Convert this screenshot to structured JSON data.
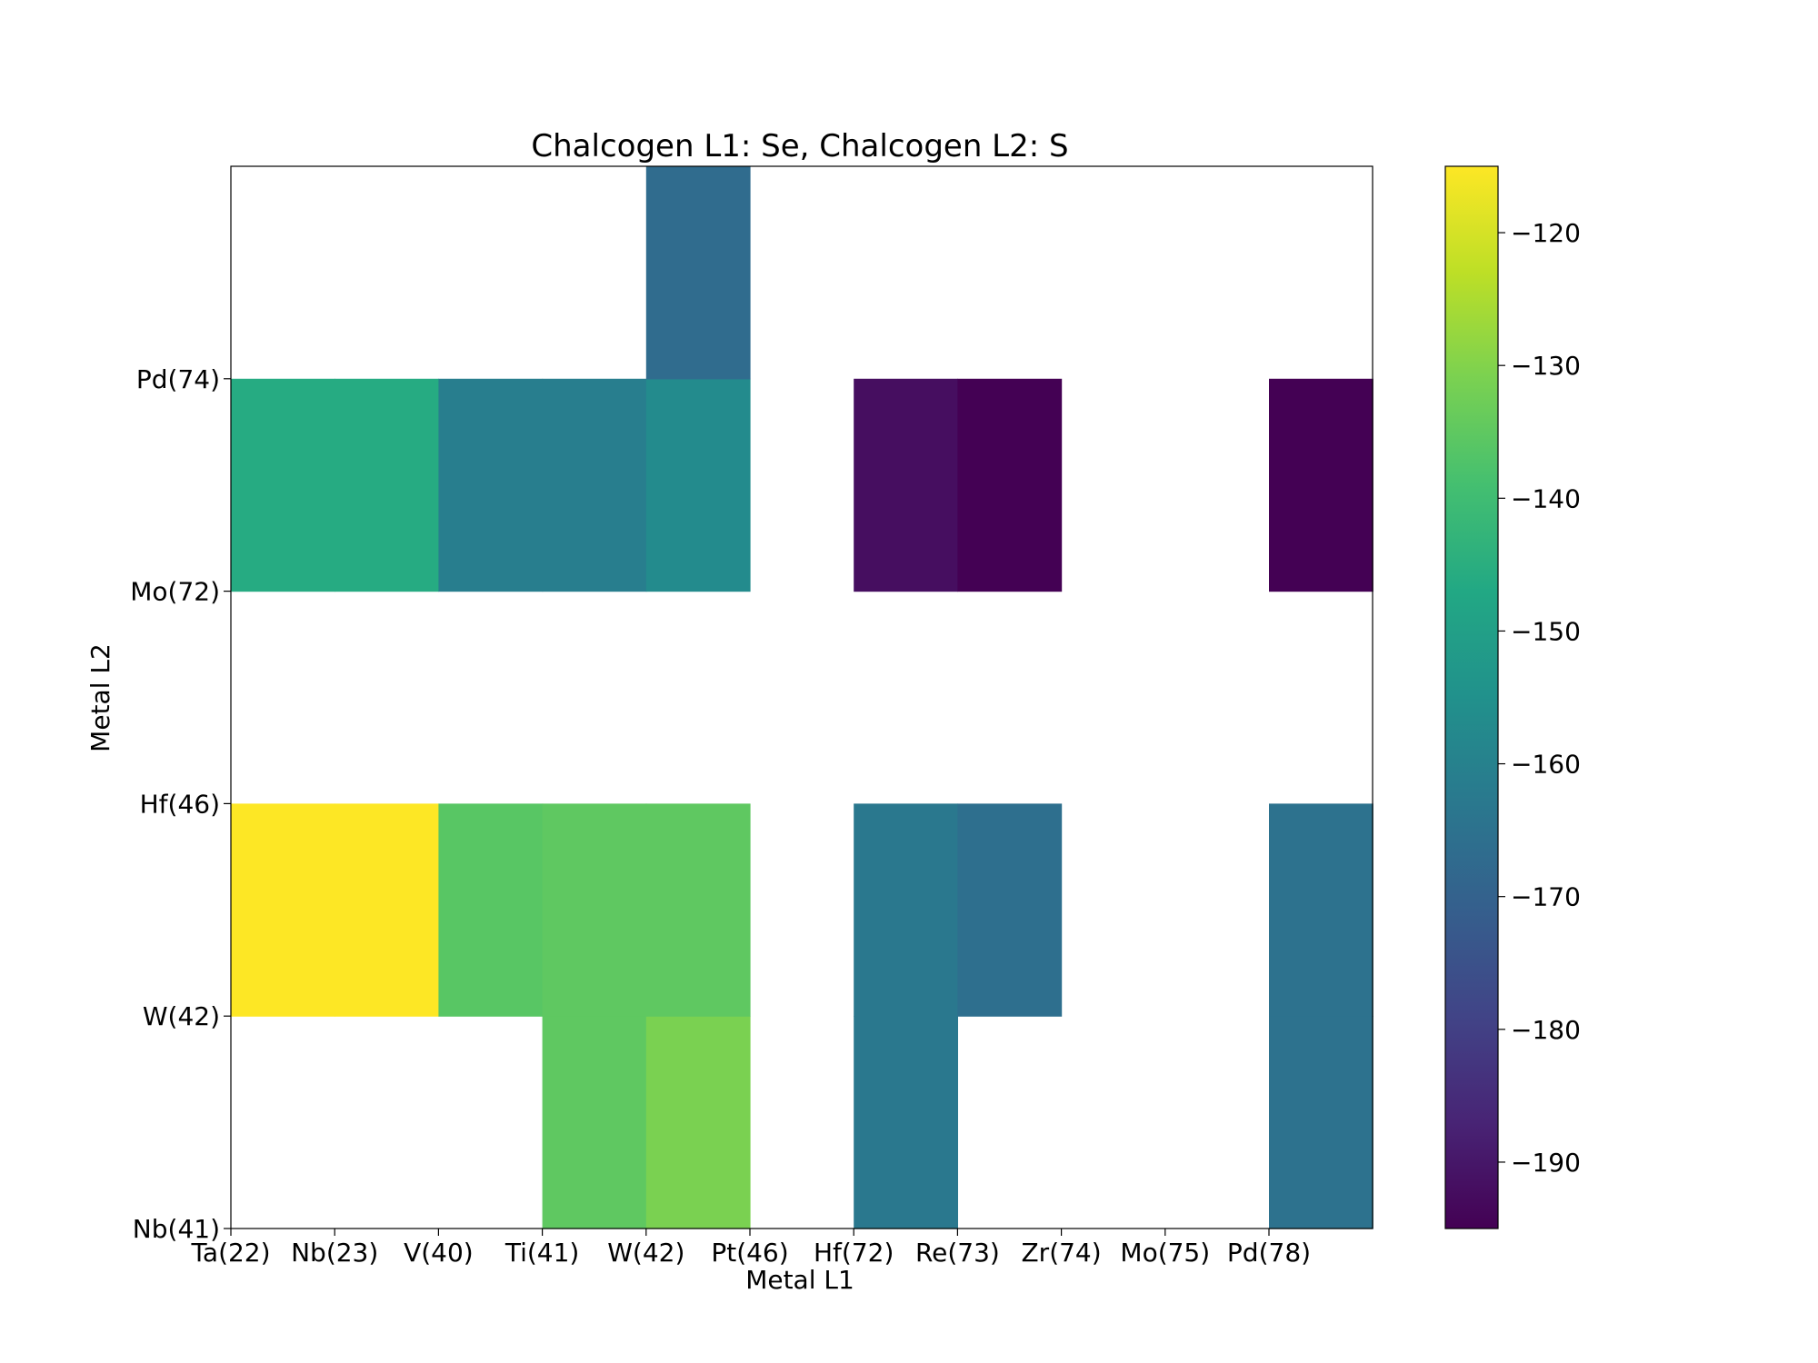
{
  "chart_data": {
    "type": "heatmap",
    "title": "Chalcogen L1: Se, Chalcogen L2: S",
    "xlabel": "Metal L1",
    "ylabel": "Metal L2",
    "x_tick_labels": [
      "Ta(22)",
      "Nb(23)",
      "V(40)",
      "Ti(41)",
      "W(42)",
      "Pt(46)",
      "Hf(72)",
      "Re(73)",
      "Zr(74)",
      "Mo(75)",
      "Pd(78)"
    ],
    "y_tick_labels": [
      "Nb(41)",
      "W(42)",
      "Hf(46)",
      "Mo(72)",
      "Pd(74)"
    ],
    "x_edges": [
      22,
      23,
      40,
      41,
      42,
      46,
      72,
      73,
      74,
      75,
      78
    ],
    "y_edges": [
      41,
      42,
      46,
      72,
      74
    ],
    "cells": [
      {
        "x": "Ti(41)",
        "y": "Nb(41)",
        "value": -135
      },
      {
        "x": "W(42)",
        "y": "Nb(41)",
        "value": -131
      },
      {
        "x": "Hf(72)",
        "y": "Nb(41)",
        "value": -163
      },
      {
        "x": "Pd(78)",
        "y": "Nb(41)",
        "value": -165
      },
      {
        "x": "Ta(22)",
        "y": "W(42)",
        "value": -115
      },
      {
        "x": "Nb(23)",
        "y": "W(42)",
        "value": -115
      },
      {
        "x": "V(40)",
        "y": "W(42)",
        "value": -136
      },
      {
        "x": "Ti(41)",
        "y": "W(42)",
        "value": -135
      },
      {
        "x": "W(42)",
        "y": "W(42)",
        "value": -135
      },
      {
        "x": "Hf(72)",
        "y": "W(42)",
        "value": -163
      },
      {
        "x": "Re(73)",
        "y": "W(42)",
        "value": -166
      },
      {
        "x": "Pd(78)",
        "y": "W(42)",
        "value": -165
      },
      {
        "x": "Ta(22)",
        "y": "Mo(72)",
        "value": -146
      },
      {
        "x": "Nb(23)",
        "y": "Mo(72)",
        "value": -146
      },
      {
        "x": "V(40)",
        "y": "Mo(72)",
        "value": -161
      },
      {
        "x": "Ti(41)",
        "y": "Mo(72)",
        "value": -161
      },
      {
        "x": "W(42)",
        "y": "Mo(72)",
        "value": -157
      },
      {
        "x": "Hf(72)",
        "y": "Mo(72)",
        "value": -192
      },
      {
        "x": "Re(73)",
        "y": "Mo(72)",
        "value": -195
      },
      {
        "x": "Pd(78)",
        "y": "Mo(72)",
        "value": -195
      },
      {
        "x": "W(42)",
        "y": "Pd(74)",
        "value": -167
      }
    ],
    "colorbar": {
      "colormap": "viridis",
      "range": [
        -195,
        -115
      ],
      "ticks": [
        -120,
        -130,
        -140,
        -150,
        -160,
        -170,
        -180,
        -190
      ]
    }
  }
}
